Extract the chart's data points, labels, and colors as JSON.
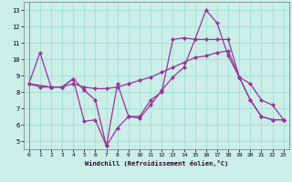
{
  "xlabel": "Windchill (Refroidissement éolien,°C)",
  "background_color": "#cbeee9",
  "line_color": "#993399",
  "grid_color": "#99ddcc",
  "xlim": [
    -0.5,
    23.5
  ],
  "ylim": [
    4.5,
    13.5
  ],
  "yticks": [
    5,
    6,
    7,
    8,
    9,
    10,
    11,
    12,
    13
  ],
  "xticks": [
    0,
    1,
    2,
    3,
    4,
    5,
    6,
    7,
    8,
    9,
    10,
    11,
    12,
    13,
    14,
    15,
    16,
    17,
    18,
    19,
    20,
    21,
    22,
    23
  ],
  "lines": [
    {
      "x": [
        0,
        1,
        2,
        3,
        4,
        5,
        6,
        7,
        8,
        9,
        10,
        11,
        12,
        13,
        14,
        15,
        16,
        17,
        18,
        19,
        20,
        21,
        22,
        23
      ],
      "y": [
        8.5,
        10.4,
        8.3,
        8.3,
        8.8,
        8.1,
        7.5,
        4.7,
        5.8,
        6.5,
        6.4,
        7.2,
        8.1,
        8.9,
        9.5,
        11.2,
        13.0,
        12.2,
        10.2,
        8.9,
        7.5,
        6.5,
        6.3,
        6.3
      ]
    },
    {
      "x": [
        0,
        1,
        2,
        3,
        4,
        5,
        6,
        7,
        8,
        9,
        10,
        11,
        12,
        13,
        14,
        15,
        16,
        17,
        18,
        19,
        20,
        21,
        22,
        23
      ],
      "y": [
        8.5,
        8.3,
        8.3,
        8.3,
        8.5,
        8.3,
        8.2,
        8.2,
        8.3,
        8.5,
        8.7,
        8.9,
        9.2,
        9.5,
        9.8,
        10.1,
        10.2,
        10.4,
        10.5,
        8.9,
        8.5,
        7.5,
        7.2,
        6.3
      ]
    },
    {
      "x": [
        0,
        2,
        3,
        4,
        5,
        6,
        7,
        8,
        9,
        10,
        11,
        12,
        13,
        14,
        15,
        16,
        17,
        18,
        19,
        20,
        21,
        22,
        23
      ],
      "y": [
        8.5,
        8.3,
        8.3,
        8.8,
        6.2,
        6.3,
        4.7,
        8.5,
        6.5,
        6.5,
        7.5,
        8.0,
        11.2,
        11.3,
        11.2,
        11.2,
        11.2,
        11.2,
        8.9,
        7.5,
        6.5,
        6.3,
        6.3
      ]
    }
  ]
}
